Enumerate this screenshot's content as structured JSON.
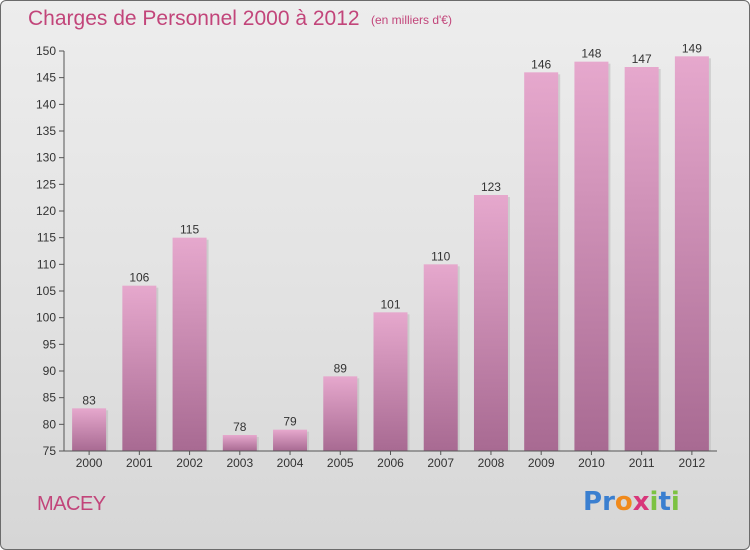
{
  "title": "Charges de Personnel 2000 à 2012",
  "subtitle": "(en milliers d'€)",
  "place": "MACEY",
  "logo": {
    "text": "Proxiti",
    "letters": [
      "P",
      "r",
      "o",
      "x",
      "i",
      "t",
      "i"
    ],
    "colors": [
      "#3a7fd0",
      "#3a7fd0",
      "#f08a1c",
      "#d8367a",
      "#7cc242",
      "#3a7fd0",
      "#7cc242"
    ]
  },
  "colors": {
    "bar_top": "#e6a8cd",
    "bar_bottom": "#a86a92",
    "accent": "#c2457a",
    "axis": "#555555"
  },
  "chart_data": {
    "type": "bar",
    "categories": [
      "2000",
      "2001",
      "2002",
      "2003",
      "2004",
      "2005",
      "2006",
      "2007",
      "2008",
      "2009",
      "2010",
      "2011",
      "2012"
    ],
    "values": [
      83,
      106,
      115,
      78,
      79,
      89,
      101,
      110,
      123,
      146,
      148,
      147,
      149
    ],
    "ylim": [
      75,
      150
    ],
    "yticks": [
      75,
      80,
      85,
      90,
      95,
      100,
      105,
      110,
      115,
      120,
      125,
      130,
      135,
      140,
      145,
      150
    ],
    "grid": false,
    "title": "Charges de Personnel 2000 à 2012",
    "xlabel": "",
    "ylabel": ""
  }
}
